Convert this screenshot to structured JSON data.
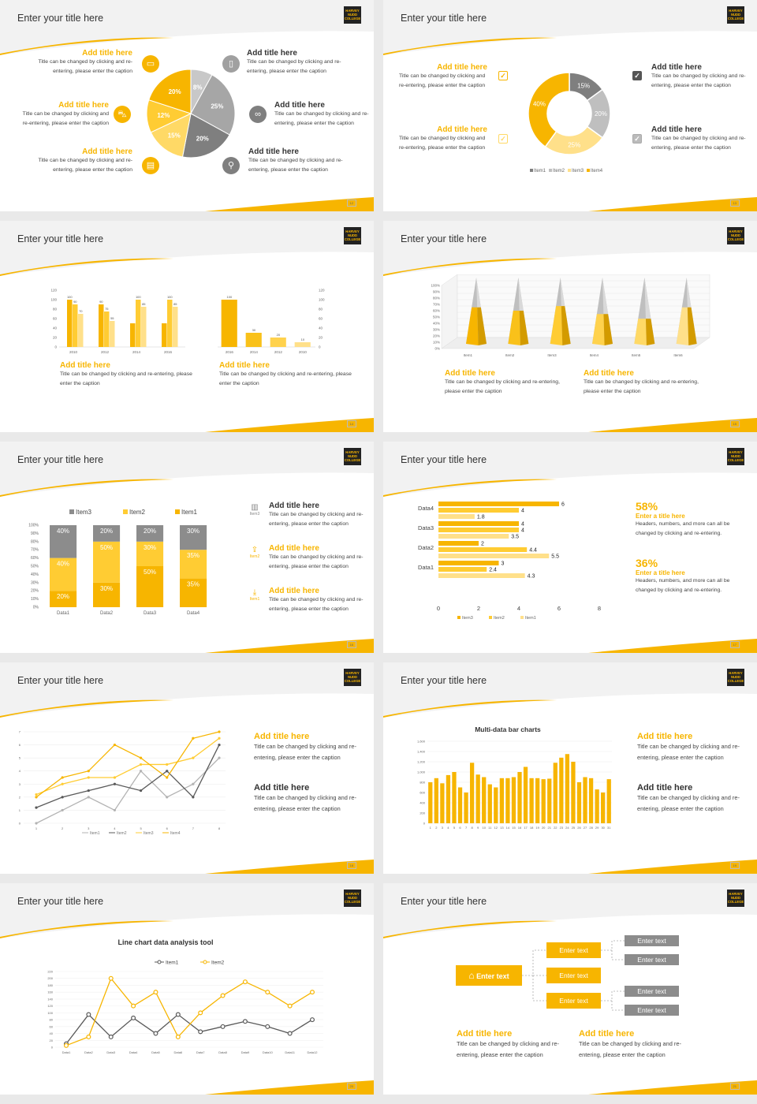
{
  "slide_title": "Enter your title here",
  "logo_lines": [
    "HARVEY",
    "NUDD",
    "COLLEGE"
  ],
  "caption_short": "Title can be changed by clicking and re-entering, please enter the caption",
  "add_title": "Add title here",
  "colors": {
    "accent": "#f7b500",
    "grey": "#a0a0a0",
    "dark_grey": "#7f7f7f",
    "light_yellow": "#ffd966"
  },
  "slides": [
    {
      "page": "12",
      "items_left": [
        {
          "title": "Add title here",
          "caption": "Title can be changed by clicking and re-entering, please enter the caption",
          "icon": "monitor-icon"
        },
        {
          "title": "Add title here",
          "caption": "Title can be changed by clicking and re-entering, please enter the caption",
          "icon": "car-icon"
        },
        {
          "title": "Add title here",
          "caption": "Title can be changed by clicking and re-entering, please enter the caption",
          "icon": "book-icon"
        }
      ],
      "items_right": [
        {
          "title": "Add title here",
          "caption": "Title can be changed by clicking and re-entering, please enter the caption",
          "icon": "phone-icon"
        },
        {
          "title": "Add title here",
          "caption": "Title can be changed by clicking and re-entering, please enter the caption",
          "icon": "binoculars-icon"
        },
        {
          "title": "Add title here",
          "caption": "Title can be changed by clicking and re-entering, please enter the caption",
          "icon": "bicycle-icon"
        }
      ]
    },
    {
      "page": "13",
      "items_left": [
        {
          "title": "Add title here",
          "caption": "Title can be changed by clicking and re-entering, please enter the caption"
        },
        {
          "title": "Add title here",
          "caption": "Title can be changed by clicking and re-entering, please enter the caption"
        }
      ],
      "items_right": [
        {
          "title": "Add title here",
          "caption": "Title can be changed by clicking and re-entering, please enter the caption"
        },
        {
          "title": "Add title here",
          "caption": "Title can be changed by clicking and re-entering, please enter the caption"
        }
      ]
    },
    {
      "page": "14",
      "captions": [
        {
          "title": "Add title here",
          "caption": "Title can be changed by clicking and re-entering, please enter the caption"
        },
        {
          "title": "Add title here",
          "caption": "Title can be changed by clicking and re-entering, please enter the caption"
        }
      ]
    },
    {
      "page": "15",
      "captions": [
        {
          "title": "Add title here",
          "caption": "Title can be changed by clicking and re-entering, please enter the caption"
        },
        {
          "title": "Add title here",
          "caption": "Title can be changed by clicking and re-entering, please enter the caption"
        }
      ]
    },
    {
      "page": "16",
      "items": [
        {
          "title": "Add title here",
          "caption": "Title can be changed by clicking and re-entering, please enter the caption",
          "icon": "bar-chart-icon",
          "label": "Item3"
        },
        {
          "title": "Add title here",
          "caption": "Title can be changed by clicking and re-entering, please enter the caption",
          "icon": "upload-icon",
          "label": "Item2"
        },
        {
          "title": "Add title here",
          "caption": "Title can be changed by clicking and re-entering, please enter the caption",
          "icon": "download-icon",
          "label": "Item1"
        }
      ]
    },
    {
      "page": "17",
      "stats": [
        {
          "value": "58%",
          "title": "Enter a title here",
          "caption": "Headers, numbers, and more can all be changed by clicking and re-entering."
        },
        {
          "value": "36%",
          "title": "Enter a title here",
          "caption": "Headers, numbers, and more can all be changed by clicking and re-entering."
        }
      ]
    },
    {
      "page": "18",
      "items": [
        {
          "title": "Add title here",
          "caption": "Title can be changed by clicking and re-entering, please enter the caption"
        },
        {
          "title": "Add title here",
          "caption": "Title can be changed by clicking and re-entering, please enter the caption"
        }
      ]
    },
    {
      "page": "19",
      "items": [
        {
          "title": "Add title here",
          "caption": "Title can be changed by clicking and re-entering, please enter the caption"
        },
        {
          "title": "Add title here",
          "caption": "Title can be changed by clicking and re-entering, please enter the caption"
        }
      ]
    },
    {
      "page": "20"
    },
    {
      "page": "21",
      "root": "Enter text",
      "mid": [
        "Enter text",
        "Enter text",
        "Enter text"
      ],
      "leaves": [
        "Enter text",
        "Enter text",
        "Enter text",
        "Enter text"
      ],
      "captions": [
        {
          "title": "Add title here",
          "caption": "Title can be changed by clicking and re-entering, please enter the caption"
        },
        {
          "title": "Add title here",
          "caption": "Title can be changed by clicking and re-entering, please enter the caption"
        }
      ]
    }
  ],
  "chart_data": [
    {
      "type": "pie",
      "labels": [
        "8%",
        "25%",
        "20%",
        "15%",
        "12%",
        "20%"
      ],
      "values": [
        8,
        25,
        20,
        15,
        12,
        20
      ]
    },
    {
      "type": "pie",
      "labels": [
        "15%",
        "20%",
        "25%",
        "40%"
      ],
      "values": [
        15,
        20,
        25,
        40
      ],
      "legend": [
        "Item1",
        "Item2",
        "Item3",
        "Item4"
      ],
      "legend_placement": "bottom"
    },
    {
      "type": "bar",
      "categories": [
        "2010",
        "2012",
        "2014",
        "2016"
      ],
      "series": [
        {
          "values": [
            100,
            90,
            50,
            50
          ]
        },
        {
          "values": [
            90,
            75,
            100,
            100
          ]
        },
        {
          "values": [
            70,
            55,
            85,
            85
          ]
        }
      ],
      "ylim": [
        0,
        120
      ],
      "yticks": [
        "0",
        "20",
        "40",
        "60",
        "80",
        "100",
        "120"
      ],
      "data_labels": [
        [
          "100",
          "90",
          "70"
        ],
        [
          "90",
          "75",
          "55"
        ],
        [
          "",
          "100",
          "85"
        ],
        [
          "",
          "100",
          "85"
        ]
      ]
    },
    {
      "type": "bar",
      "categories": [
        "2016",
        "2014",
        "2012",
        "2010"
      ],
      "values": [
        100,
        30,
        20,
        10
      ],
      "ylim": [
        0,
        120
      ],
      "yticks": [
        "0",
        "20",
        "40",
        "60",
        "80",
        "100",
        "120"
      ]
    },
    {
      "type": "bar",
      "categories": [
        "Item1",
        "Item2",
        "Item3",
        "Item4",
        "Item5",
        "Item6"
      ],
      "values": [
        55,
        50,
        57,
        45,
        38,
        55
      ],
      "yticks": [
        "0%",
        "10%",
        "20%",
        "30%",
        "40%",
        "50%",
        "60%",
        "70%",
        "80%",
        "90%",
        "100%"
      ]
    },
    {
      "type": "bar",
      "stacked": true,
      "categories": [
        "Data1",
        "Data2",
        "Data3",
        "Data4"
      ],
      "series": [
        {
          "name": "Item1",
          "values": [
            20,
            30,
            50,
            35
          ]
        },
        {
          "name": "Item2",
          "values": [
            40,
            50,
            30,
            35
          ]
        },
        {
          "name": "Item3",
          "values": [
            40,
            20,
            20,
            30
          ]
        }
      ],
      "yticks": [
        "0%",
        "10%",
        "20%",
        "30%",
        "40%",
        "50%",
        "60%",
        "70%",
        "80%",
        "90%",
        "100%"
      ]
    },
    {
      "type": "bar",
      "orientation": "horizontal",
      "categories": [
        "Data1",
        "Data2",
        "Data3",
        "Data4"
      ],
      "series": [
        {
          "name": "Item3",
          "values": [
            3,
            2,
            4,
            6
          ]
        },
        {
          "name": "Item2",
          "values": [
            2.4,
            4.4,
            4,
            4
          ]
        },
        {
          "name": "Item1",
          "values": [
            4.3,
            5.5,
            3.5,
            1.8
          ]
        }
      ],
      "xlim": [
        0,
        8
      ],
      "xticks": [
        "0",
        "2",
        "4",
        "6",
        "8"
      ]
    },
    {
      "type": "line",
      "x": [
        1,
        2,
        3,
        4,
        5,
        6,
        7,
        8
      ],
      "series": [
        {
          "name": "Item1",
          "values": [
            0,
            1,
            2,
            1,
            4,
            2,
            3,
            5
          ]
        },
        {
          "name": "Item2",
          "values": [
            1.2,
            2,
            2.5,
            3,
            2.5,
            4,
            2,
            6
          ]
        },
        {
          "name": "Item3",
          "values": [
            2.2,
            3,
            3.5,
            3.5,
            4.5,
            4.5,
            5,
            6.5
          ]
        },
        {
          "name": "Item4",
          "values": [
            2,
            3.5,
            4,
            6,
            5,
            3.5,
            6.5,
            7
          ]
        }
      ],
      "ylim": [
        0,
        7
      ],
      "yticks": [
        "0",
        "1",
        "2",
        "3",
        "4",
        "5",
        "6",
        "7"
      ]
    },
    {
      "type": "bar",
      "title": "Multi-data bar charts",
      "categories": [
        "1",
        "2",
        "3",
        "4",
        "5",
        "6",
        "7",
        "8",
        "9",
        "10",
        "11",
        "12",
        "13",
        "14",
        "15",
        "16",
        "17",
        "18",
        "19",
        "20",
        "21",
        "22",
        "23",
        "24",
        "25",
        "26",
        "27",
        "28",
        "29",
        "30",
        "31"
      ],
      "values": [
        800,
        880,
        780,
        940,
        1000,
        700,
        600,
        1180,
        950,
        900,
        760,
        700,
        880,
        880,
        900,
        1000,
        1100,
        880,
        880,
        860,
        870,
        1180,
        1280,
        1350,
        1200,
        800,
        900,
        880,
        660,
        600,
        860
      ],
      "ylim": [
        0,
        1600
      ],
      "yticks": [
        "0",
        "200",
        "400",
        "600",
        "800",
        "1,000",
        "1,200",
        "1,400",
        "1,600"
      ]
    },
    {
      "type": "line",
      "title": "Line chart data analysis tool",
      "categories": [
        "Data1",
        "Data2",
        "Data3",
        "Data4",
        "Data5",
        "Data6",
        "Data7",
        "Data8",
        "Data9",
        "Data10",
        "Data11",
        "Data12"
      ],
      "series": [
        {
          "name": "Item1",
          "values": [
            10,
            95,
            30,
            85,
            40,
            95,
            45,
            60,
            75,
            60,
            40,
            80
          ]
        },
        {
          "name": "Item2",
          "values": [
            5,
            30,
            200,
            120,
            160,
            30,
            100,
            150,
            190,
            160,
            120,
            160
          ]
        }
      ],
      "ylim": [
        0,
        220
      ],
      "yticks": [
        "0",
        "20",
        "40",
        "60",
        "80",
        "100",
        "120",
        "140",
        "160",
        "180",
        "200",
        "220"
      ]
    }
  ]
}
